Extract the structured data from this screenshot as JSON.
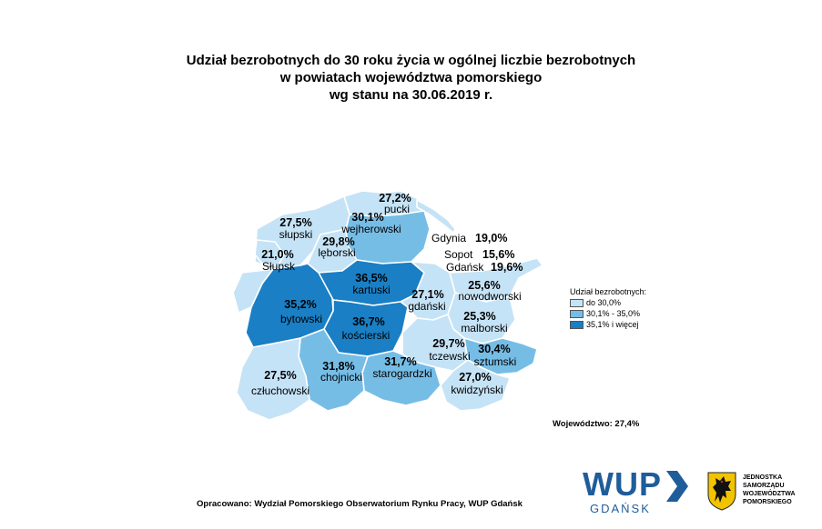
{
  "title": {
    "line1": "Udział bezrobotnych do 30 roku życia w ogólnej liczbie bezrobotnych",
    "line2": "w powiatach województwa pomorskiego",
    "line3": "wg stanu na 30.06.2019 r."
  },
  "colors": {
    "low": "#c5e3f6",
    "mid": "#76bde6",
    "high": "#1a7fc4",
    "border": "#ffffff"
  },
  "districts": [
    {
      "id": "pucki",
      "name": "pucki",
      "value": "27,2%",
      "class": "low"
    },
    {
      "id": "wejherowski",
      "name": "wejherowski",
      "value": "30,1%",
      "class": "mid"
    },
    {
      "id": "slupski",
      "name": "słupski",
      "value": "27,5%",
      "class": "low"
    },
    {
      "id": "leborski",
      "name": "lęborski",
      "value": "29,8%",
      "class": "low"
    },
    {
      "id": "slupsk",
      "name": "Słupsk",
      "value": "21,0%",
      "class": "low"
    },
    {
      "id": "kartuski",
      "name": "kartuski",
      "value": "36,5%",
      "class": "high"
    },
    {
      "id": "bytowski",
      "name": "bytowski",
      "value": "35,2%",
      "class": "high"
    },
    {
      "id": "gdanski",
      "name": "gdański",
      "value": "27,1%",
      "class": "low"
    },
    {
      "id": "nowodworski",
      "name": "nowodworski",
      "value": "25,6%",
      "class": "low"
    },
    {
      "id": "koscierski",
      "name": "kościerski",
      "value": "36,7%",
      "class": "high"
    },
    {
      "id": "malborski",
      "name": "malborski",
      "value": "25,3%",
      "class": "low"
    },
    {
      "id": "tczewski",
      "name": "tczewski",
      "value": "29,7%",
      "class": "low"
    },
    {
      "id": "sztumski",
      "name": "sztumski",
      "value": "30,4%",
      "class": "mid"
    },
    {
      "id": "czluchowski",
      "name": "człuchowski",
      "value": "27,5%",
      "class": "low"
    },
    {
      "id": "chojnicki",
      "name": "chojnicki",
      "value": "31,8%",
      "class": "mid"
    },
    {
      "id": "starogardzki",
      "name": "starogardzki",
      "value": "31,7%",
      "class": "mid"
    },
    {
      "id": "kwidzynski",
      "name": "kwidzyński",
      "value": "27,0%",
      "class": "low"
    }
  ],
  "cities": [
    {
      "id": "gdynia",
      "name": "Gdynia",
      "value": "19,0%"
    },
    {
      "id": "sopot",
      "name": "Sopot",
      "value": "15,6%"
    },
    {
      "id": "gdansk",
      "name": "Gdańsk",
      "value": "19,6%"
    }
  ],
  "legend": {
    "title": "Udział bezrobotnych:",
    "items": [
      {
        "label": "do 30,0%",
        "class": "low"
      },
      {
        "label": "30,1% - 35,0%",
        "class": "mid"
      },
      {
        "label": "35,1% i więcej",
        "class": "high"
      }
    ]
  },
  "voivodeship_total": "Województwo: 27,4%",
  "footer": "Opracowano: Wydział Pomorskiego Obserwatorium Rynku Pracy, WUP Gdańsk",
  "logos": {
    "wup_main": "WUP",
    "wup_sub": "GDAŃSK",
    "jst_lines": [
      "JEDNOSTKA",
      "SAMORZĄDU",
      "WOJEWÓDZTWA",
      "POMORSKIEGO"
    ],
    "emblem_icon": "griffin-emblem-icon"
  }
}
